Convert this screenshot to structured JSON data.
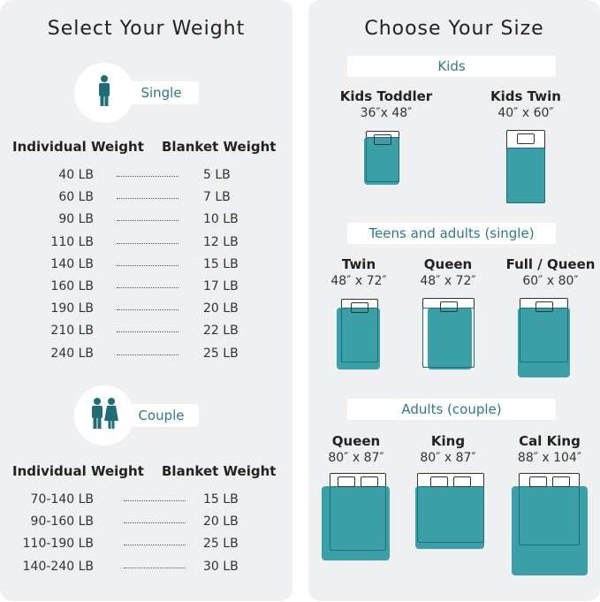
{
  "weight": {
    "title": "Select Your Weight",
    "single": {
      "label": "Single",
      "icon": "person-icon"
    },
    "couple": {
      "label": "Couple",
      "icon": "couple-icon"
    },
    "col_individual": "Individual Weight",
    "col_blanket": "Blanket Weight",
    "single_rows": [
      [
        "40 LB",
        "5 LB"
      ],
      [
        "60 LB",
        "7 LB"
      ],
      [
        "90 LB",
        "10 LB"
      ],
      [
        "110 LB",
        "12 LB"
      ],
      [
        "140 LB",
        "15 LB"
      ],
      [
        "160 LB",
        "17 LB"
      ],
      [
        "190 LB",
        "20 LB"
      ],
      [
        "210 LB",
        "22 LB"
      ],
      [
        "240 LB",
        "25 LB"
      ]
    ],
    "couple_rows": [
      [
        "70-140 LB",
        "15 LB"
      ],
      [
        "90-160 LB",
        "20 LB"
      ],
      [
        "110-190 LB",
        "25 LB"
      ],
      [
        "140-240 LB",
        "30 LB"
      ]
    ]
  },
  "size": {
    "title": "Choose Your Size",
    "sections": [
      "Kids",
      "Teens and adults (single)",
      "Adults (couple)"
    ],
    "beds": [
      {
        "name": "Kids Toddler",
        "dims": "36″x 48″"
      },
      {
        "name": "Kids Twin",
        "dims": "40″ x 60″"
      },
      {
        "name": "Twin",
        "dims": "48″ x 72″"
      },
      {
        "name": "Queen",
        "dims": "48″ x 72″"
      },
      {
        "name": "Full / Queen",
        "dims": "60″ x 80″"
      },
      {
        "name": "Queen",
        "dims": "80″ x 87″"
      },
      {
        "name": "King",
        "dims": "80″ x 87″"
      },
      {
        "name": "Cal King",
        "dims": "88″ x 104″"
      }
    ]
  },
  "colors": {
    "teal": "#3a9fa7",
    "teal_dark": "#1f6e75",
    "panel": "#eef0f2"
  }
}
